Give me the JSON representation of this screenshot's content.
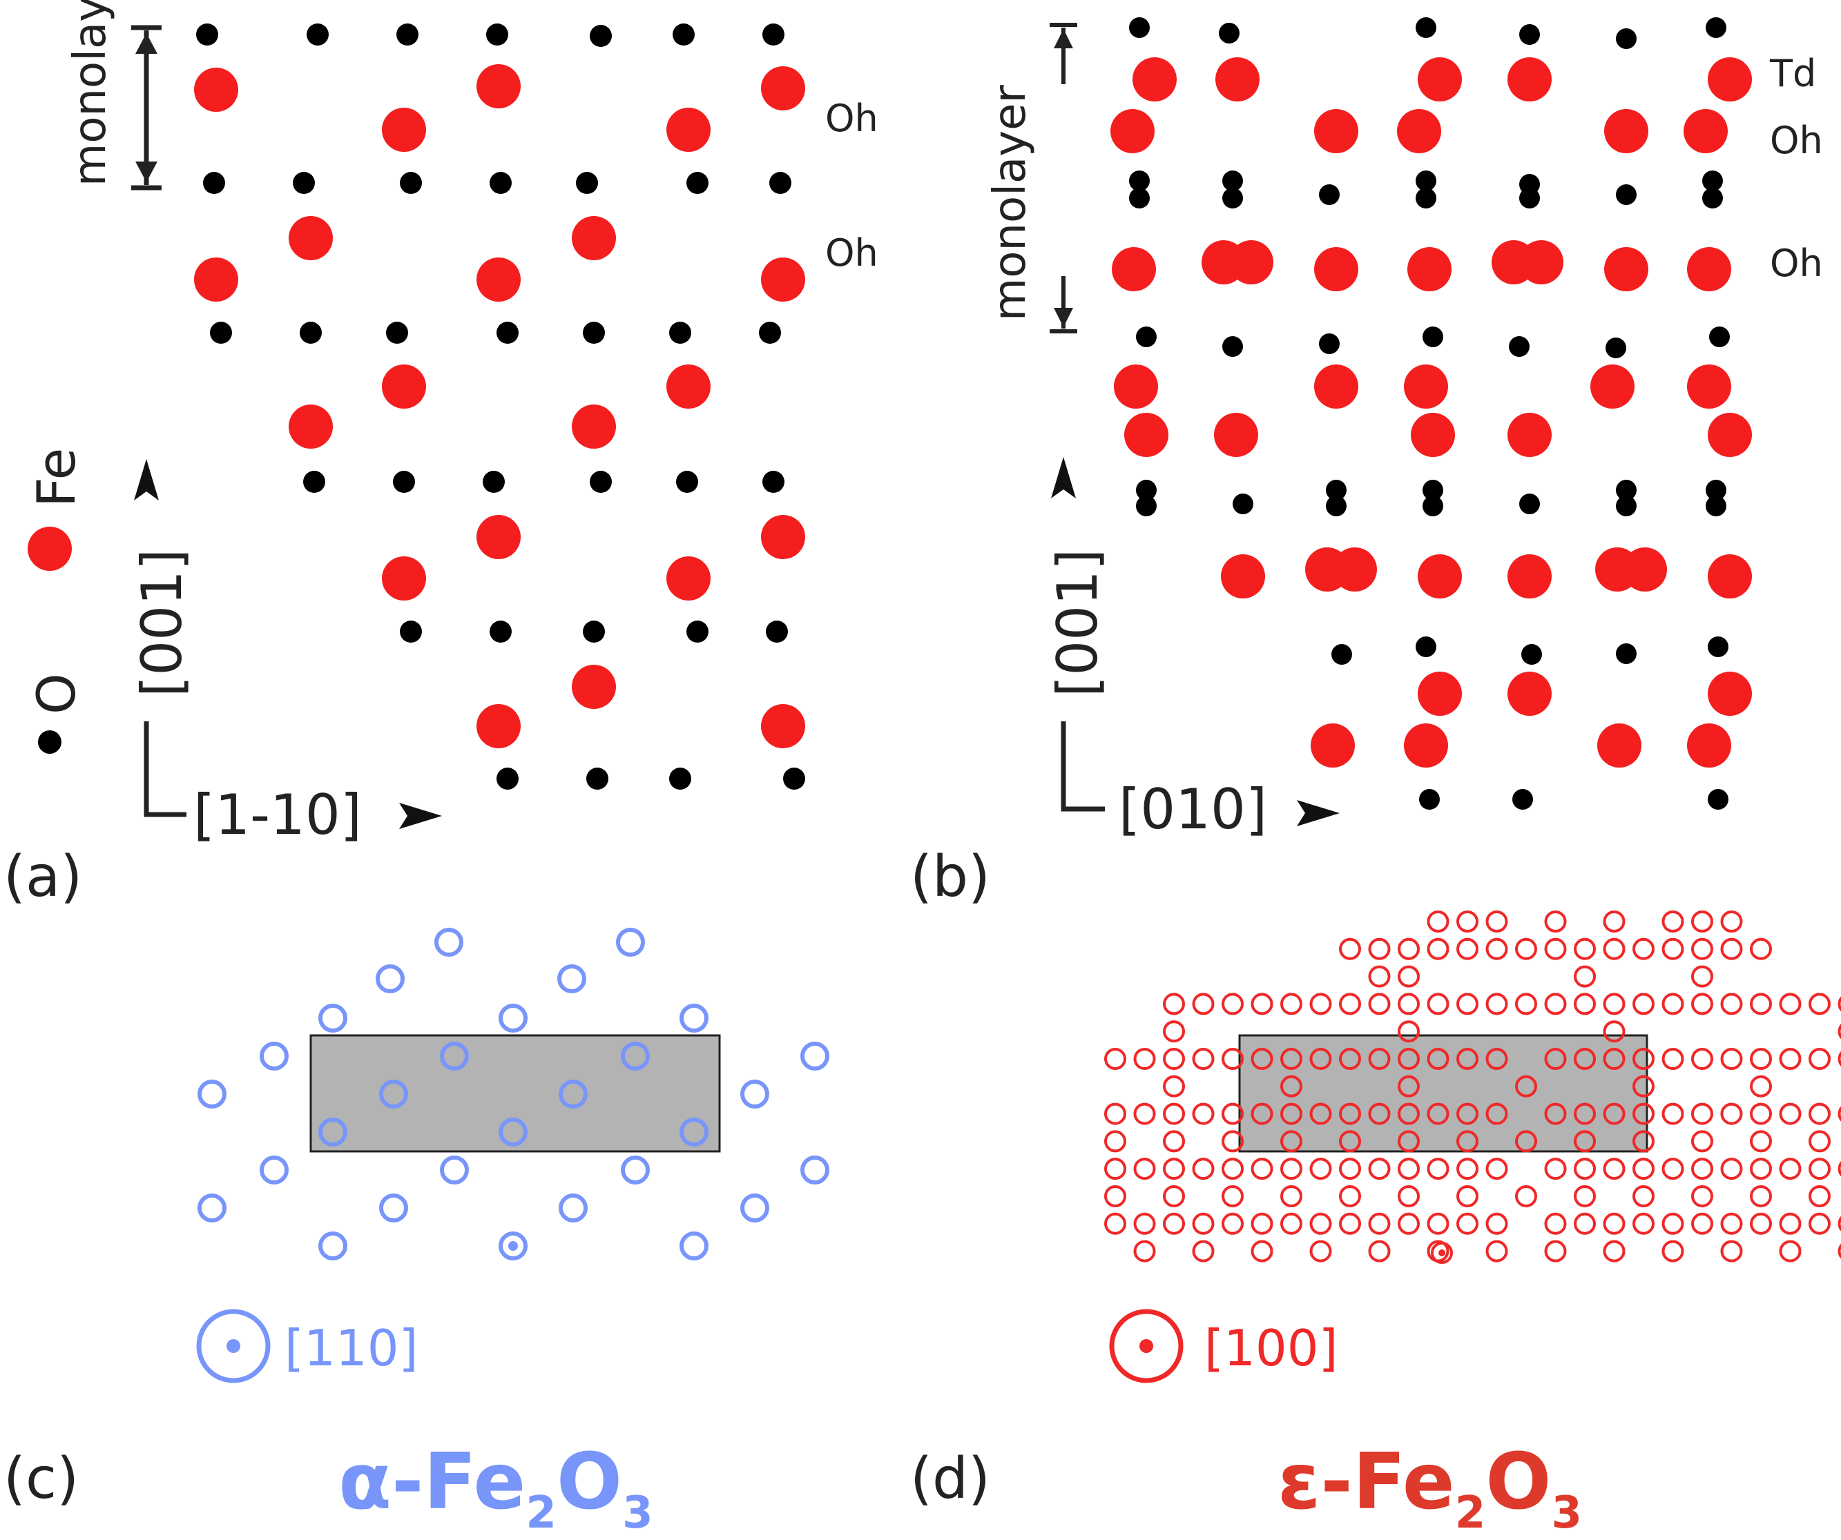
{
  "colors": {
    "fe": "#f41e1e",
    "o": "#000000",
    "alpha": "#7895fa",
    "epsilon": "#f02828",
    "epsilon_title": "#de3a2b",
    "cell_fill": "#b3b3b3"
  },
  "panel_a": {
    "label": "(a)",
    "monolayer": "monolayer",
    "site_labels": [
      "Oh",
      "Oh"
    ],
    "axis_vertical": "[001]",
    "axis_horizontal": "[1-10]",
    "legend_fe": "Fe",
    "legend_o": "O"
  },
  "panel_b": {
    "label": "(b)",
    "monolayer": "monolayer",
    "site_labels": [
      "Td",
      "Oh",
      "Oh"
    ],
    "axis_vertical": "[001]",
    "axis_horizontal": "[010]"
  },
  "panel_c": {
    "label": "(c)",
    "zone_axis": "[110]",
    "phase": {
      "prefix": "α-Fe",
      "sub1": "2",
      "mid": "O",
      "sub2": "3"
    }
  },
  "panel_d": {
    "label": "(d)",
    "zone_axis": "[100]",
    "phase": {
      "prefix": "ε-Fe",
      "sub1": "2",
      "mid": "O",
      "sub2": "3"
    }
  }
}
